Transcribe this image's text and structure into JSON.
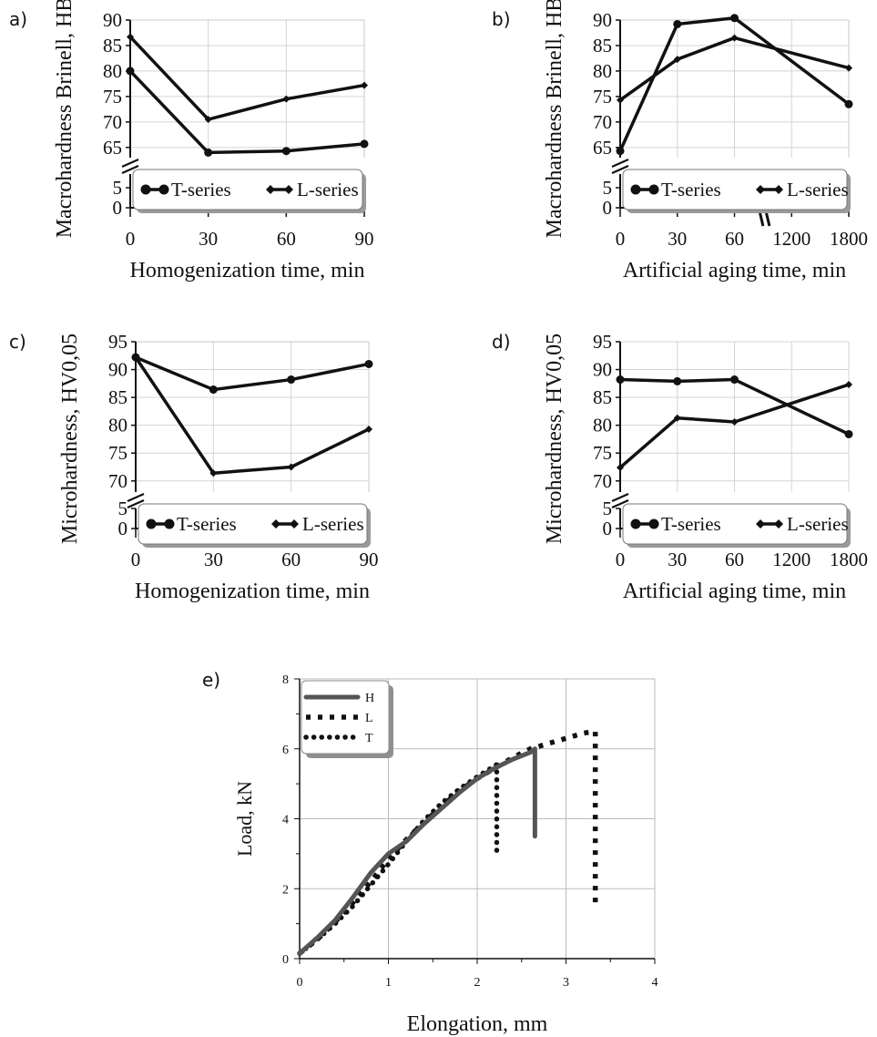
{
  "chart_data": [
    {
      "panel_label": "a)",
      "type": "line",
      "xlabel": "Homogenization time, min",
      "ylabel": "Macrohardness Brinell, HB",
      "x_ticks": [
        "0",
        "30",
        "60",
        "90"
      ],
      "y_ticks_upper": [
        "65",
        "70",
        "75",
        "80",
        "85",
        "90"
      ],
      "y_ticks_lower": [
        "0",
        "5"
      ],
      "legend_position": "bottom",
      "series": [
        {
          "name": "T-series",
          "marker": "circle",
          "x": [
            0,
            30,
            60,
            90
          ],
          "values": [
            80.0,
            64.0,
            64.3,
            65.7
          ]
        },
        {
          "name": "L-series",
          "marker": "diamond",
          "x": [
            0,
            30,
            60,
            90
          ],
          "values": [
            86.7,
            70.5,
            74.5,
            77.2
          ]
        }
      ]
    },
    {
      "panel_label": "b)",
      "type": "line",
      "xlabel": "Artificial aging time, min",
      "ylabel": "Macrohardness Brinell, HB",
      "x_ticks": [
        "0",
        "30",
        "60",
        "1200",
        "1800"
      ],
      "y_ticks_upper": [
        "65",
        "70",
        "75",
        "80",
        "85",
        "90"
      ],
      "y_ticks_lower": [
        "0",
        "5"
      ],
      "legend_position": "bottom",
      "series": [
        {
          "name": "T-series",
          "marker": "circle",
          "x": [
            "0",
            "30",
            "60",
            "1800"
          ],
          "values": [
            64.3,
            89.2,
            90.4,
            73.5
          ]
        },
        {
          "name": "L-series",
          "marker": "diamond",
          "x": [
            "0",
            "30",
            "60",
            "1800"
          ],
          "values": [
            74.3,
            82.3,
            86.5,
            80.6
          ]
        }
      ]
    },
    {
      "panel_label": "c)",
      "type": "line",
      "xlabel": "Homogenization time, min",
      "ylabel": "Microhardness, HV0,05",
      "x_ticks": [
        "0",
        "30",
        "60",
        "90"
      ],
      "y_ticks_upper": [
        "70",
        "75",
        "80",
        "85",
        "90",
        "95"
      ],
      "y_ticks_lower": [
        "0",
        "5"
      ],
      "legend_position": "bottom",
      "series": [
        {
          "name": "T-series",
          "marker": "circle",
          "x": [
            0,
            30,
            60,
            90
          ],
          "values": [
            92.2,
            86.4,
            88.2,
            91.0
          ]
        },
        {
          "name": "L-series",
          "marker": "diamond",
          "x": [
            0,
            30,
            60,
            90
          ],
          "values": [
            92.2,
            71.4,
            72.5,
            79.3
          ]
        }
      ]
    },
    {
      "panel_label": "d)",
      "type": "line",
      "xlabel": "Artificial aging time, min",
      "ylabel": "Microhardness, HV0,05",
      "x_ticks": [
        "0",
        "30",
        "60",
        "1200",
        "1800"
      ],
      "y_ticks_upper": [
        "70",
        "75",
        "80",
        "85",
        "90",
        "95"
      ],
      "y_ticks_lower": [
        "0",
        "5"
      ],
      "legend_position": "bottom",
      "series": [
        {
          "name": "T-series",
          "marker": "circle",
          "x": [
            "0",
            "30",
            "60",
            "1800"
          ],
          "values": [
            88.2,
            87.9,
            88.2,
            78.4
          ]
        },
        {
          "name": "L-series",
          "marker": "diamond",
          "x": [
            "0",
            "30",
            "60",
            "1800"
          ],
          "values": [
            72.4,
            81.3,
            80.6,
            87.3
          ]
        }
      ]
    },
    {
      "panel_label": "e)",
      "type": "line",
      "xlabel": "Elongation, mm",
      "ylabel": "Load, kN",
      "x_ticks": [
        "0",
        "1",
        "2",
        "3",
        "4"
      ],
      "y_ticks": [
        "0",
        "2",
        "4",
        "6",
        "8"
      ],
      "xlim": [
        0,
        4
      ],
      "ylim": [
        0,
        8
      ],
      "grid": true,
      "legend_position": "top-left",
      "series": [
        {
          "name": "H",
          "style": "solid",
          "x": [
            0.0,
            0.2,
            0.4,
            0.6,
            0.8,
            1.0,
            1.2,
            1.4,
            1.6,
            1.8,
            2.0,
            2.2,
            2.4,
            2.6,
            2.65,
            2.65
          ],
          "values": [
            0.15,
            0.6,
            1.1,
            1.75,
            2.45,
            3.0,
            3.35,
            3.85,
            4.3,
            4.75,
            5.15,
            5.45,
            5.7,
            5.9,
            6.0,
            3.5
          ]
        },
        {
          "name": "L",
          "style": "dashed",
          "x": [
            0.0,
            0.2,
            0.4,
            0.6,
            0.8,
            1.0,
            1.2,
            1.4,
            1.6,
            1.8,
            2.0,
            2.2,
            2.4,
            2.6,
            2.8,
            3.0,
            3.2,
            3.33,
            3.33
          ],
          "values": [
            0.15,
            0.55,
            1.05,
            1.6,
            2.2,
            2.85,
            3.4,
            3.9,
            4.35,
            4.8,
            5.15,
            5.45,
            5.75,
            6.0,
            6.15,
            6.3,
            6.45,
            6.5,
            1.5
          ]
        },
        {
          "name": "T",
          "style": "dotted",
          "x": [
            0.0,
            0.2,
            0.4,
            0.6,
            0.8,
            1.0,
            1.2,
            1.4,
            1.6,
            1.8,
            2.0,
            2.22,
            2.22
          ],
          "values": [
            0.15,
            0.55,
            1.0,
            1.5,
            2.1,
            2.7,
            3.35,
            3.95,
            4.45,
            4.85,
            5.2,
            5.55,
            3.05
          ]
        }
      ]
    }
  ]
}
